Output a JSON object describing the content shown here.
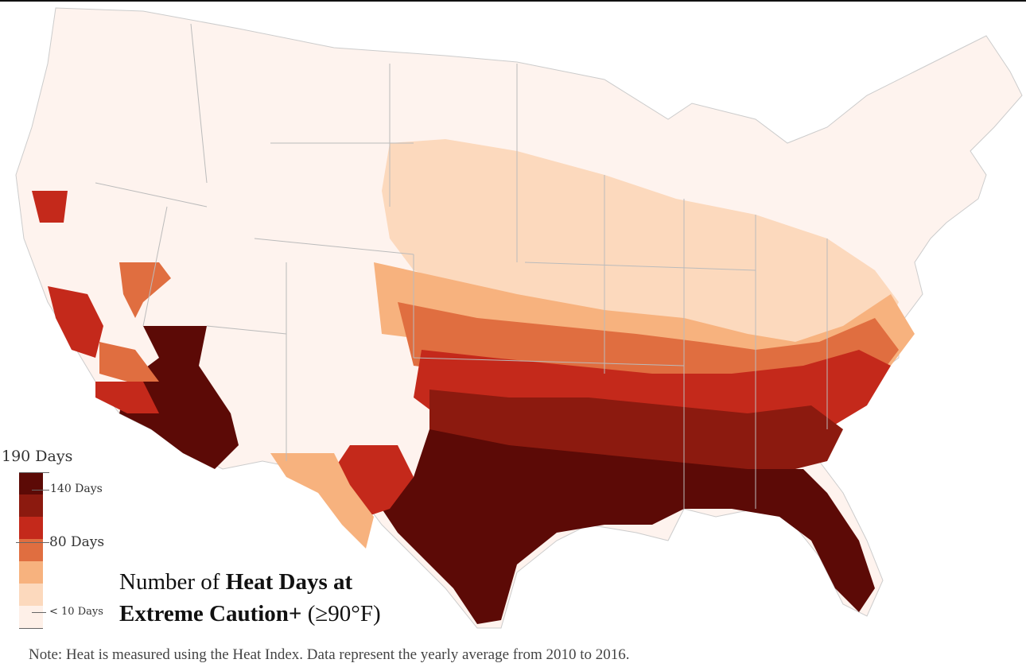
{
  "title": {
    "prefix": "Number of ",
    "bold_line1": "Heat Days at",
    "bold_line2": "Extreme Caution+",
    "suffix": " (≥90°F)"
  },
  "legend": {
    "max_label": "190 Days",
    "tick_140": "140 Days",
    "tick_80": "80 Days",
    "tick_10": "< 10 Days",
    "bins": [
      {
        "color": "#5c0a06"
      },
      {
        "color": "#8c1a0f"
      },
      {
        "color": "#c4291b"
      },
      {
        "color": "#e06e40"
      },
      {
        "color": "#f7b27e"
      },
      {
        "color": "#fcd9bd"
      },
      {
        "color": "#fef0e8"
      }
    ]
  },
  "note": "Note: Heat is measured using the Heat Index. Data represent the yearly average from 2010 to 2016.",
  "map": {
    "land_color": "#fef3ee",
    "border_color": "#bbbbbb"
  }
}
